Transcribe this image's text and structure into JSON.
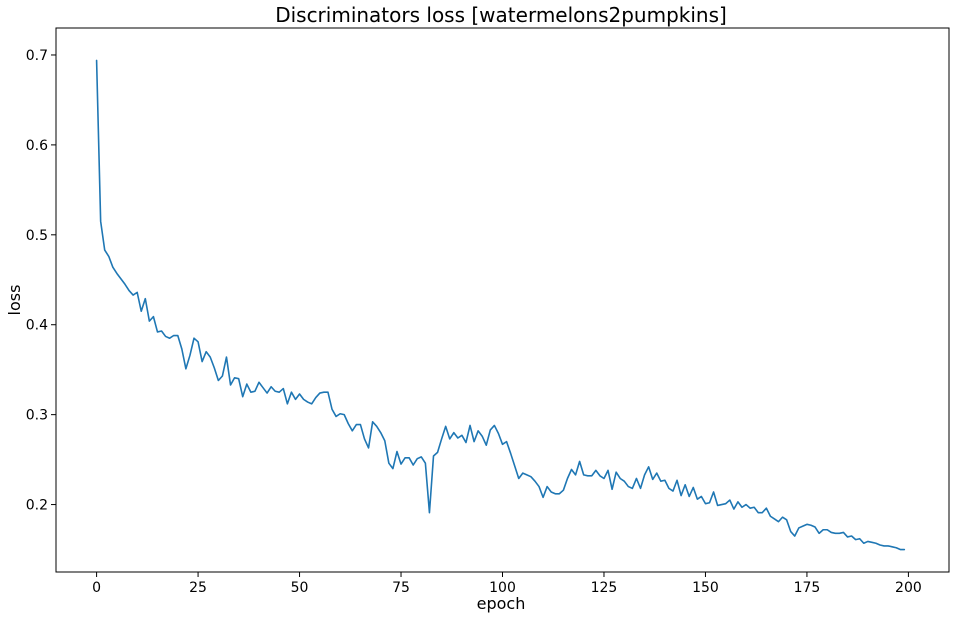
{
  "chart_data": {
    "type": "line",
    "title": "Discriminators loss [watermelons2pumpkins]",
    "xlabel": "epoch",
    "ylabel": "loss",
    "xlim": [
      -10,
      210
    ],
    "ylim": [
      0.125,
      0.73
    ],
    "xticks": [
      0,
      25,
      50,
      75,
      100,
      125,
      150,
      175,
      200
    ],
    "yticks": [
      0.2,
      0.3,
      0.4,
      0.5,
      0.6,
      0.7
    ],
    "grid": false,
    "line_color": "#1f77b4",
    "series": [
      {
        "x_start": 0,
        "x_step": 1,
        "values": [
          0.694,
          0.515,
          0.483,
          0.476,
          0.464,
          0.457,
          0.451,
          0.445,
          0.438,
          0.433,
          0.436,
          0.415,
          0.429,
          0.404,
          0.409,
          0.392,
          0.393,
          0.387,
          0.385,
          0.388,
          0.388,
          0.373,
          0.351,
          0.366,
          0.385,
          0.381,
          0.359,
          0.37,
          0.364,
          0.352,
          0.338,
          0.343,
          0.364,
          0.333,
          0.341,
          0.34,
          0.32,
          0.334,
          0.325,
          0.326,
          0.336,
          0.33,
          0.324,
          0.331,
          0.326,
          0.325,
          0.329,
          0.312,
          0.325,
          0.317,
          0.323,
          0.317,
          0.314,
          0.312,
          0.319,
          0.324,
          0.325,
          0.325,
          0.306,
          0.298,
          0.301,
          0.3,
          0.29,
          0.282,
          0.289,
          0.289,
          0.273,
          0.263,
          0.292,
          0.287,
          0.28,
          0.271,
          0.246,
          0.24,
          0.259,
          0.245,
          0.252,
          0.252,
          0.244,
          0.251,
          0.253,
          0.246,
          0.191,
          0.254,
          0.258,
          0.273,
          0.287,
          0.273,
          0.28,
          0.274,
          0.277,
          0.269,
          0.288,
          0.27,
          0.282,
          0.276,
          0.266,
          0.283,
          0.288,
          0.279,
          0.267,
          0.27,
          0.257,
          0.243,
          0.229,
          0.235,
          0.233,
          0.231,
          0.226,
          0.22,
          0.208,
          0.22,
          0.214,
          0.212,
          0.212,
          0.216,
          0.229,
          0.239,
          0.233,
          0.248,
          0.233,
          0.232,
          0.232,
          0.238,
          0.232,
          0.229,
          0.238,
          0.217,
          0.236,
          0.229,
          0.226,
          0.22,
          0.218,
          0.229,
          0.218,
          0.233,
          0.242,
          0.228,
          0.235,
          0.226,
          0.227,
          0.218,
          0.215,
          0.227,
          0.21,
          0.222,
          0.209,
          0.219,
          0.206,
          0.209,
          0.201,
          0.202,
          0.214,
          0.199,
          0.2,
          0.201,
          0.205,
          0.195,
          0.203,
          0.197,
          0.2,
          0.196,
          0.197,
          0.191,
          0.191,
          0.196,
          0.187,
          0.184,
          0.181,
          0.186,
          0.183,
          0.17,
          0.165,
          0.174,
          0.176,
          0.178,
          0.177,
          0.175,
          0.168,
          0.172,
          0.172,
          0.169,
          0.168,
          0.168,
          0.169,
          0.164,
          0.165,
          0.161,
          0.162,
          0.157,
          0.159,
          0.158,
          0.157,
          0.155,
          0.154,
          0.154,
          0.153,
          0.152,
          0.15,
          0.15
        ]
      }
    ]
  }
}
